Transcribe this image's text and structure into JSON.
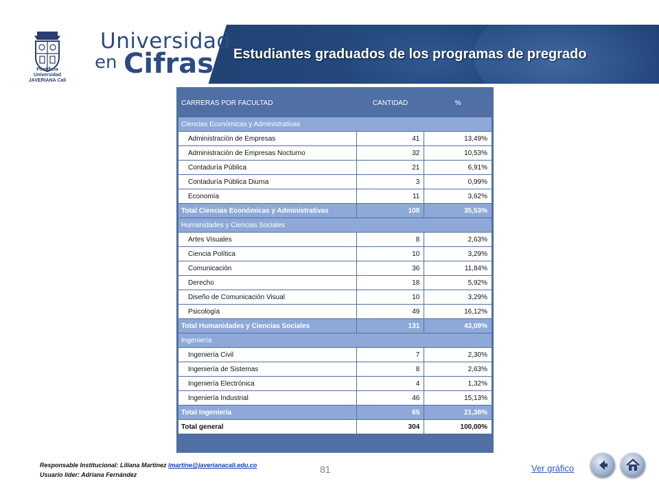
{
  "header": {
    "crest_name": "Pontificia Universidad JAVERIANA Cali",
    "brand_line1": "Universidad",
    "brand_line2": "en",
    "brand_line3": "Cifras",
    "title": "Estudiantes graduados de los programas de pregrado"
  },
  "table": {
    "headers": [
      "CARRERAS POR FACULTAD",
      "CANTIDAD",
      "%"
    ],
    "rows": [
      {
        "type": "fac",
        "name": "Ciencias Económicas y Administrativas"
      },
      {
        "type": "item",
        "name": "Administración de Empresas",
        "qty": "41",
        "pct": "13,49%"
      },
      {
        "type": "item",
        "name": "Administración de Empresas Nocturno",
        "qty": "32",
        "pct": "10,53%"
      },
      {
        "type": "item",
        "name": "Contaduría Pública",
        "qty": "21",
        "pct": "6,91%"
      },
      {
        "type": "item",
        "name": "Contaduría Pública Diurna",
        "qty": "3",
        "pct": "0,99%"
      },
      {
        "type": "item",
        "name": "Economía",
        "qty": "11",
        "pct": "3,62%"
      },
      {
        "type": "total",
        "name": "Total Ciencias Económicas y Administrativas",
        "qty": "108",
        "pct": "35,53%"
      },
      {
        "type": "fac",
        "name": "Humanidades y Ciencias Sociales"
      },
      {
        "type": "item",
        "name": "Artes Visuales",
        "qty": "8",
        "pct": "2,63%"
      },
      {
        "type": "item",
        "name": "Ciencia Política",
        "qty": "10",
        "pct": "3,29%"
      },
      {
        "type": "item",
        "name": "Comunicación",
        "qty": "36",
        "pct": "11,84%"
      },
      {
        "type": "item",
        "name": "Derecho",
        "qty": "18",
        "pct": "5,92%"
      },
      {
        "type": "item",
        "name": "Diseño de Comunicación Visual",
        "qty": "10",
        "pct": "3,29%"
      },
      {
        "type": "item",
        "name": "Psicología",
        "qty": "49",
        "pct": "16,12%"
      },
      {
        "type": "total",
        "name": "Total Humanidades y Ciencias Sociales",
        "qty": "131",
        "pct": "43,09%"
      },
      {
        "type": "fac",
        "name": "Ingeniería"
      },
      {
        "type": "item",
        "name": "Ingeniería Civil",
        "qty": "7",
        "pct": "2,30%"
      },
      {
        "type": "item",
        "name": "Ingeniería de Sistemas",
        "qty": "8",
        "pct": "2,63%"
      },
      {
        "type": "item",
        "name": "Ingeniería Electrónica",
        "qty": "4",
        "pct": "1,32%"
      },
      {
        "type": "item",
        "name": "Ingeniería Industrial",
        "qty": "46",
        "pct": "15,13%"
      },
      {
        "type": "total",
        "name": "Total Ingeniería",
        "qty": "65",
        "pct": "21,38%"
      },
      {
        "type": "grand",
        "name": "Total general",
        "qty": "304",
        "pct": "100,00%"
      }
    ]
  },
  "footer": {
    "responsible_label": "Responsable Institucional: Liliana Martínez",
    "responsible_email": "lmartine@javerianacali.edu.co",
    "user_leader": "Usuario líder: Adriana Fernández",
    "page_number": "81",
    "chart_link": "Ver gráfico",
    "back_icon": "back-arrow-icon",
    "home_icon": "home-icon"
  },
  "colors": {
    "banner": "#24497d",
    "table_header": "#4f6fa5",
    "table_band": "#8ea9d8",
    "link": "#2f55c9"
  }
}
